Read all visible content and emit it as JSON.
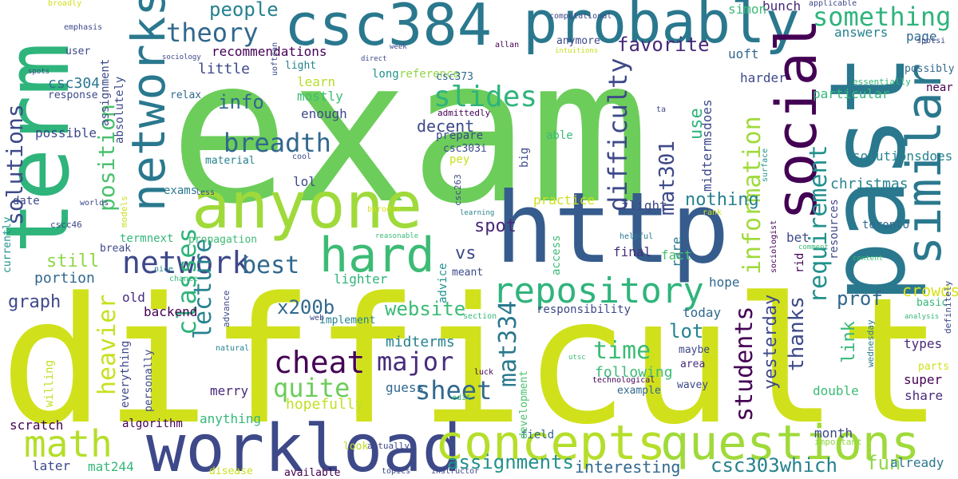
{
  "palette": {
    "dark_purple": "#440154",
    "indigo": "#3b528b",
    "teal": "#21918c",
    "green": "#5ec962",
    "lime": "#c8df1b",
    "yellow": "#fde725"
  },
  "words": [
    {
      "t": "exam",
      "c": "#6ccd5a"
    },
    {
      "t": "difficult",
      "c": "#d0e11c"
    },
    {
      "t": "past",
      "c": "#2a788e"
    },
    {
      "t": "term",
      "c": "#2fb47c"
    },
    {
      "t": "http",
      "c": "#365c8d"
    },
    {
      "t": "workload",
      "c": "#3e4989"
    },
    {
      "t": "csc384",
      "c": "#2a788e"
    },
    {
      "t": "probably",
      "c": "#2a788e"
    },
    {
      "t": "anyone",
      "c": "#9fda3a"
    },
    {
      "t": "social",
      "c": "#440154"
    },
    {
      "t": "similar",
      "c": "#2a788e"
    },
    {
      "t": "concepts",
      "c": "#b5de2b"
    },
    {
      "t": "questions",
      "c": "#9fda3a"
    },
    {
      "t": "networks",
      "c": "#2a788e"
    },
    {
      "t": "hard",
      "c": "#3cbb75"
    },
    {
      "t": "math",
      "c": "#b5de2b"
    },
    {
      "t": "repository",
      "c": "#2fb47c"
    },
    {
      "t": "something",
      "c": "#2fb47c"
    },
    {
      "t": "theory",
      "c": "#31688e"
    },
    {
      "t": "network",
      "c": "#3e4989"
    },
    {
      "t": "breadth",
      "c": "#31688e"
    },
    {
      "t": "difficulty",
      "c": "#3e4989"
    },
    {
      "t": "slides",
      "c": "#2fb47c"
    },
    {
      "t": "cheat",
      "c": "#440154"
    },
    {
      "t": "major",
      "c": "#472d7b"
    },
    {
      "t": "sheet",
      "c": "#31688e"
    },
    {
      "t": "quite",
      "c": "#6ccd5a"
    },
    {
      "t": "information",
      "c": "#9fda3a"
    },
    {
      "t": "requirement",
      "c": "#21918c"
    },
    {
      "t": "students",
      "c": "#440154"
    },
    {
      "t": "position",
      "c": "#4ac16d"
    },
    {
      "t": "classes",
      "c": "#2fb47c"
    },
    {
      "t": "lecture",
      "c": "#26828e"
    },
    {
      "t": "heavier",
      "c": "#c8e020"
    },
    {
      "t": "solutions",
      "c": "#3e4989"
    },
    {
      "t": "mat334",
      "c": "#2a788e"
    },
    {
      "t": "mat301",
      "c": "#3e4989"
    },
    {
      "t": "time",
      "c": "#3cbb75"
    },
    {
      "t": "best",
      "c": "#31688e"
    },
    {
      "t": "favorite",
      "c": "#482878"
    },
    {
      "t": "people",
      "c": "#26828e"
    },
    {
      "t": "info",
      "c": "#31688e"
    },
    {
      "t": "x200b",
      "c": "#31688e"
    },
    {
      "t": "website",
      "c": "#3cbb75"
    },
    {
      "t": "thanks",
      "c": "#3e4989"
    },
    {
      "t": "csc303which",
      "c": "#26828e"
    },
    {
      "t": "assignments",
      "c": "#21918c"
    },
    {
      "t": "fun",
      "c": "#8fd744"
    },
    {
      "t": "interesting",
      "c": "#31688e"
    },
    {
      "t": "nothing",
      "c": "#26828e"
    },
    {
      "t": "yesterday",
      "c": "#3e4989"
    },
    {
      "t": "still",
      "c": "#8fd744"
    },
    {
      "t": "graph",
      "c": "#3e4989"
    },
    {
      "t": "portion",
      "c": "#31688e"
    },
    {
      "t": "prof",
      "c": "#31688e"
    },
    {
      "t": "link",
      "c": "#35b779"
    },
    {
      "t": "lot",
      "c": "#26828e"
    },
    {
      "t": "use",
      "c": "#2fb47c"
    },
    {
      "t": "decent",
      "c": "#3e4989"
    },
    {
      "t": "spot",
      "c": "#482878"
    },
    {
      "t": "vs",
      "c": "#3e4989"
    },
    {
      "t": "crowds",
      "c": "#d8e219"
    },
    {
      "t": "page",
      "c": "#31688e"
    },
    {
      "t": "answers",
      "c": "#26828e"
    },
    {
      "t": "christmas",
      "c": "#26828e"
    },
    {
      "t": "midterms",
      "c": "#26828e"
    },
    {
      "t": "hopefully",
      "c": "#c0df25"
    },
    {
      "t": "following",
      "c": "#3cbb75"
    },
    {
      "t": "little",
      "c": "#3e4989"
    },
    {
      "t": "uoft",
      "c": "#31688e"
    },
    {
      "t": "bunch",
      "c": "#482878"
    },
    {
      "t": "simon",
      "c": "#3cbb75"
    },
    {
      "t": "learn",
      "c": "#b5de2b"
    },
    {
      "t": "mostly",
      "c": "#3cbb75"
    },
    {
      "t": "enough",
      "c": "#3e4989"
    },
    {
      "t": "csc304",
      "c": "#2a788e"
    },
    {
      "t": "recommendations",
      "c": "#440154"
    },
    {
      "t": "reference",
      "c": "#8fd744"
    },
    {
      "t": "harder",
      "c": "#3e4989"
    },
    {
      "t": "particular",
      "c": "#35b779"
    },
    {
      "t": "solutionsdoes",
      "c": "#26828e"
    },
    {
      "t": "midtermsdoes",
      "c": "#3e4989"
    },
    {
      "t": "lol",
      "c": "#3e4989"
    },
    {
      "t": "bet",
      "c": "#3e4989"
    },
    {
      "t": "rare",
      "c": "#2a788e"
    },
    {
      "t": "flight",
      "c": "#3e4989"
    },
    {
      "t": "final",
      "c": "#472d7b"
    },
    {
      "t": "fact",
      "c": "#4ac16d"
    },
    {
      "t": "hope",
      "c": "#31688e"
    },
    {
      "t": "responsibility",
      "c": "#3e4989"
    },
    {
      "t": "today",
      "c": "#31688e"
    },
    {
      "t": "double",
      "c": "#3cbb75"
    },
    {
      "t": "month",
      "c": "#3e4989"
    },
    {
      "t": "super",
      "c": "#440154"
    },
    {
      "t": "share",
      "c": "#472d7b"
    },
    {
      "t": "types",
      "c": "#482878"
    },
    {
      "t": "already",
      "c": "#2a788e"
    },
    {
      "t": "scratch",
      "c": "#440154"
    },
    {
      "t": "later",
      "c": "#3e4989"
    },
    {
      "t": "mat244",
      "c": "#35b779"
    },
    {
      "t": "anything",
      "c": "#35b779"
    },
    {
      "t": "algorithm",
      "c": "#440154"
    },
    {
      "t": "practice",
      "c": "#d0e11c"
    },
    {
      "t": "lighter",
      "c": "#2fb47c"
    },
    {
      "t": "backend",
      "c": "#440154"
    },
    {
      "t": "old",
      "c": "#472d7b"
    },
    {
      "t": "merry",
      "c": "#482878"
    },
    {
      "t": "guess",
      "c": "#31688e"
    },
    {
      "t": "toronto",
      "c": "#31688e"
    },
    {
      "t": "termnext",
      "c": "#35b779"
    },
    {
      "t": "propagation",
      "c": "#3cbb75"
    },
    {
      "t": "break",
      "c": "#3e4989"
    },
    {
      "t": "date",
      "c": "#3e4989"
    },
    {
      "t": "possible",
      "c": "#3e4989"
    },
    {
      "t": "user",
      "c": "#3e4989"
    },
    {
      "t": "response",
      "c": "#3e4989"
    },
    {
      "t": "relax",
      "c": "#31688e"
    },
    {
      "t": "light",
      "c": "#26828e"
    },
    {
      "t": "long",
      "c": "#21918c"
    },
    {
      "t": "csc373",
      "c": "#31688e"
    },
    {
      "t": "prepare",
      "c": "#3e4989"
    },
    {
      "t": "csc303i",
      "c": "#3e4989"
    },
    {
      "t": "admittedly",
      "c": "#440154"
    },
    {
      "t": "able",
      "c": "#3cbb75"
    },
    {
      "t": "pey",
      "c": "#c8e020"
    },
    {
      "t": "big",
      "c": "#3e4989"
    },
    {
      "t": "anymore",
      "c": "#3e4989"
    },
    {
      "t": "essentially",
      "c": "#35b779"
    },
    {
      "t": "possibly",
      "c": "#31688e"
    },
    {
      "t": "near",
      "c": "#440154"
    },
    {
      "t": "exams",
      "c": "#2a788e"
    },
    {
      "t": "material",
      "c": "#26828e"
    },
    {
      "t": "field",
      "c": "#31688e"
    },
    {
      "t": "meant",
      "c": "#3e4989"
    },
    {
      "t": "advice",
      "c": "#21918c"
    },
    {
      "t": "access",
      "c": "#3cbb75"
    },
    {
      "t": "example",
      "c": "#31688e"
    },
    {
      "t": "wavey",
      "c": "#3e4989"
    },
    {
      "t": "area",
      "c": "#472d7b"
    },
    {
      "t": "maybe",
      "c": "#3e4989"
    },
    {
      "t": "parts",
      "c": "#d0e11c"
    },
    {
      "t": "basic",
      "c": "#35b779"
    },
    {
      "t": "resources",
      "c": "#3e4989"
    },
    {
      "t": "implement",
      "c": "#26828e"
    },
    {
      "t": "development",
      "c": "#4ac16d"
    },
    {
      "t": "everything",
      "c": "#3e4989"
    },
    {
      "t": "personally",
      "c": "#3e4989"
    },
    {
      "t": "willing",
      "c": "#c0df25"
    },
    {
      "t": "currently",
      "c": "#21918c"
    },
    {
      "t": "cscc46",
      "c": "#3e4989"
    },
    {
      "t": "worlds",
      "c": "#3e4989"
    },
    {
      "t": "models",
      "c": "#c8e020"
    },
    {
      "t": "less",
      "c": "#3e4989"
    },
    {
      "t": "cool",
      "c": "#3e4989"
    },
    {
      "t": "nice",
      "c": "#26828e"
    },
    {
      "t": "chance",
      "c": "#35b779"
    },
    {
      "t": "advance",
      "c": "#3e4989"
    },
    {
      "t": "natural",
      "c": "#26828e"
    },
    {
      "t": "web",
      "c": "#3e4989"
    },
    {
      "t": "section",
      "c": "#35b779"
    },
    {
      "t": "luck",
      "c": "#440154"
    },
    {
      "t": "edit",
      "c": "#3cbb75"
    },
    {
      "t": "actually",
      "c": "#3e4989"
    },
    {
      "t": "important",
      "c": "#8fd744"
    },
    {
      "t": "disease",
      "c": "#c8e020"
    },
    {
      "t": "available",
      "c": "#440154"
    },
    {
      "t": "topics",
      "c": "#3e4989"
    },
    {
      "t": "instructor",
      "c": "#3e4989"
    },
    {
      "t": "look",
      "c": "#c0df25"
    },
    {
      "t": "technological",
      "c": "#440154"
    },
    {
      "t": "sociologist",
      "c": "#440154"
    },
    {
      "t": "comment",
      "c": "#3cbb75"
    },
    {
      "t": "content",
      "c": "#3cbb75"
    },
    {
      "t": "helpful",
      "c": "#2a788e"
    },
    {
      "t": "rank",
      "c": "#c8e020"
    },
    {
      "t": "rid",
      "c": "#440154"
    },
    {
      "t": "definitely",
      "c": "#3e4989"
    },
    {
      "t": "wednesday",
      "c": "#2a788e"
    },
    {
      "t": "analysis",
      "c": "#35b779"
    },
    {
      "t": "reasonable",
      "c": "#3cbb75"
    },
    {
      "t": "learning",
      "c": "#26828e"
    },
    {
      "t": "borodin",
      "c": "#d0e11c"
    },
    {
      "t": "csc263",
      "c": "#3e4989"
    },
    {
      "t": "utsc",
      "c": "#3cbb75"
    },
    {
      "t": "surface",
      "c": "#21918c"
    },
    {
      "t": "ta",
      "c": "#3e4989"
    },
    {
      "t": "spotsi",
      "c": "#3e4989"
    },
    {
      "t": "applicable",
      "c": "#3e4989"
    },
    {
      "t": "computational",
      "c": "#3e4989"
    },
    {
      "t": "allan",
      "c": "#440154"
    },
    {
      "t": "intuitions",
      "c": "#c8e020"
    },
    {
      "t": "direct",
      "c": "#3e4989"
    },
    {
      "t": "week",
      "c": "#3e4989"
    },
    {
      "t": "uoftcan",
      "c": "#3e4989"
    },
    {
      "t": "sociology",
      "c": "#3e4989"
    },
    {
      "t": "broadly",
      "c": "#d0e11c"
    },
    {
      "t": "emphasis",
      "c": "#3e4989"
    },
    {
      "t": "spots",
      "c": "#3e4989"
    },
    {
      "t": "assignment",
      "c": "#3e4989"
    },
    {
      "t": "absolutely",
      "c": "#3e4989"
    }
  ]
}
